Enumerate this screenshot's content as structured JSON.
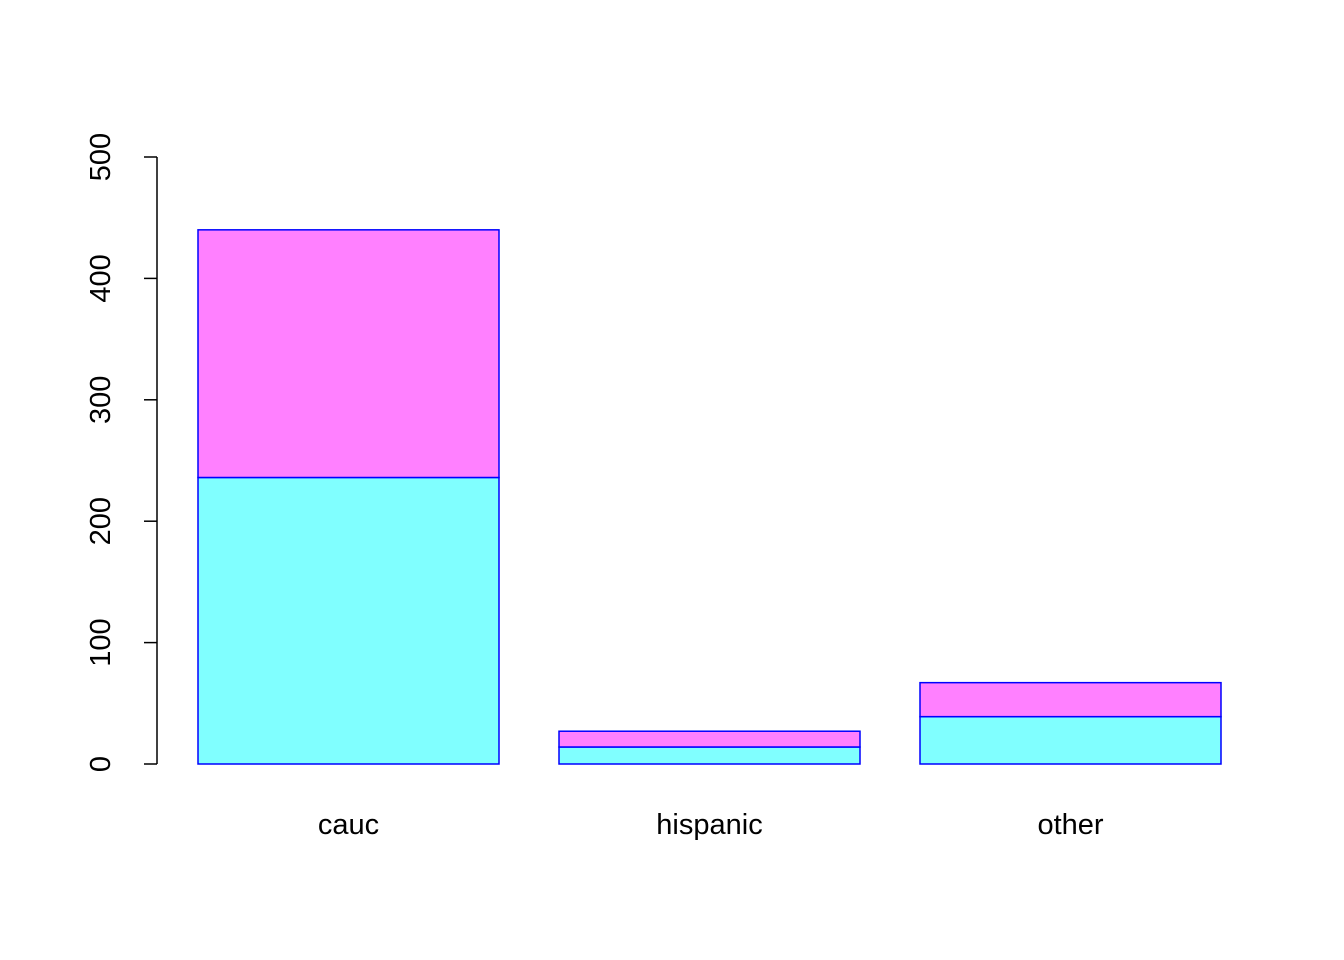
{
  "chart_data": {
    "type": "stacked-bar",
    "categories": [
      "cauc",
      "hispanic",
      "other"
    ],
    "series": [
      {
        "color": "#80ffff",
        "values": [
          236,
          14,
          39
        ]
      },
      {
        "color": "#ff80ff",
        "values": [
          204,
          13,
          28
        ]
      }
    ],
    "border_color": "#0000ff",
    "ylim": [
      0,
      500
    ],
    "yticks": [
      0,
      100,
      200,
      300,
      400,
      500
    ],
    "grid": false
  }
}
